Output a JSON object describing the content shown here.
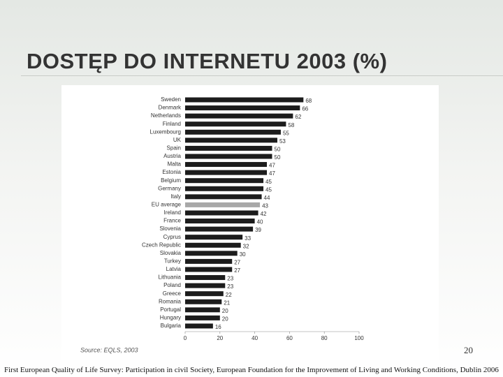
{
  "slide": {
    "title": "DOSTĘP DO INTERNETU 2003 (%)",
    "page_number": "20",
    "footer": "First European Quality of Life Survey: Participation in civil Society, European Foundation for the Improvement of Living and Working Conditions, Dublin 2006"
  },
  "chart_data": {
    "type": "hbar",
    "source": "Source: EQLS, 2003",
    "categories": [
      "Sweden",
      "Denmark",
      "Netherlands",
      "Finland",
      "Luxembourg",
      "UK",
      "Spain",
      "Austria",
      "Malta",
      "Estonia",
      "Belgium",
      "Germany",
      "Italy",
      "EU average",
      "Ireland",
      "France",
      "Slovenia",
      "Cyprus",
      "Czech Republic",
      "Slovakia",
      "Turkey",
      "Latvia",
      "Lithuania",
      "Poland",
      "Greece",
      "Romania",
      "Portugal",
      "Hungary",
      "Bulgaria"
    ],
    "values": [
      68,
      66,
      62,
      58,
      55,
      53,
      50,
      50,
      47,
      47,
      45,
      45,
      44,
      43,
      42,
      40,
      39,
      33,
      32,
      30,
      27,
      27,
      23,
      23,
      22,
      21,
      20,
      20,
      16
    ],
    "colors": [
      "#1c1c1c",
      "#1c1c1c",
      "#1c1c1c",
      "#1c1c1c",
      "#1c1c1c",
      "#1c1c1c",
      "#1c1c1c",
      "#1c1c1c",
      "#1c1c1c",
      "#1c1c1c",
      "#1c1c1c",
      "#1c1c1c",
      "#1c1c1c",
      "#a8a8a8",
      "#1c1c1c",
      "#1c1c1c",
      "#1c1c1c",
      "#1c1c1c",
      "#1c1c1c",
      "#1c1c1c",
      "#1c1c1c",
      "#1c1c1c",
      "#1c1c1c",
      "#1c1c1c",
      "#1c1c1c",
      "#1c1c1c",
      "#1c1c1c",
      "#1c1c1c",
      "#1c1c1c"
    ],
    "xlim": [
      0,
      100
    ],
    "xticks": [
      0,
      20,
      40,
      60,
      80,
      100
    ]
  }
}
